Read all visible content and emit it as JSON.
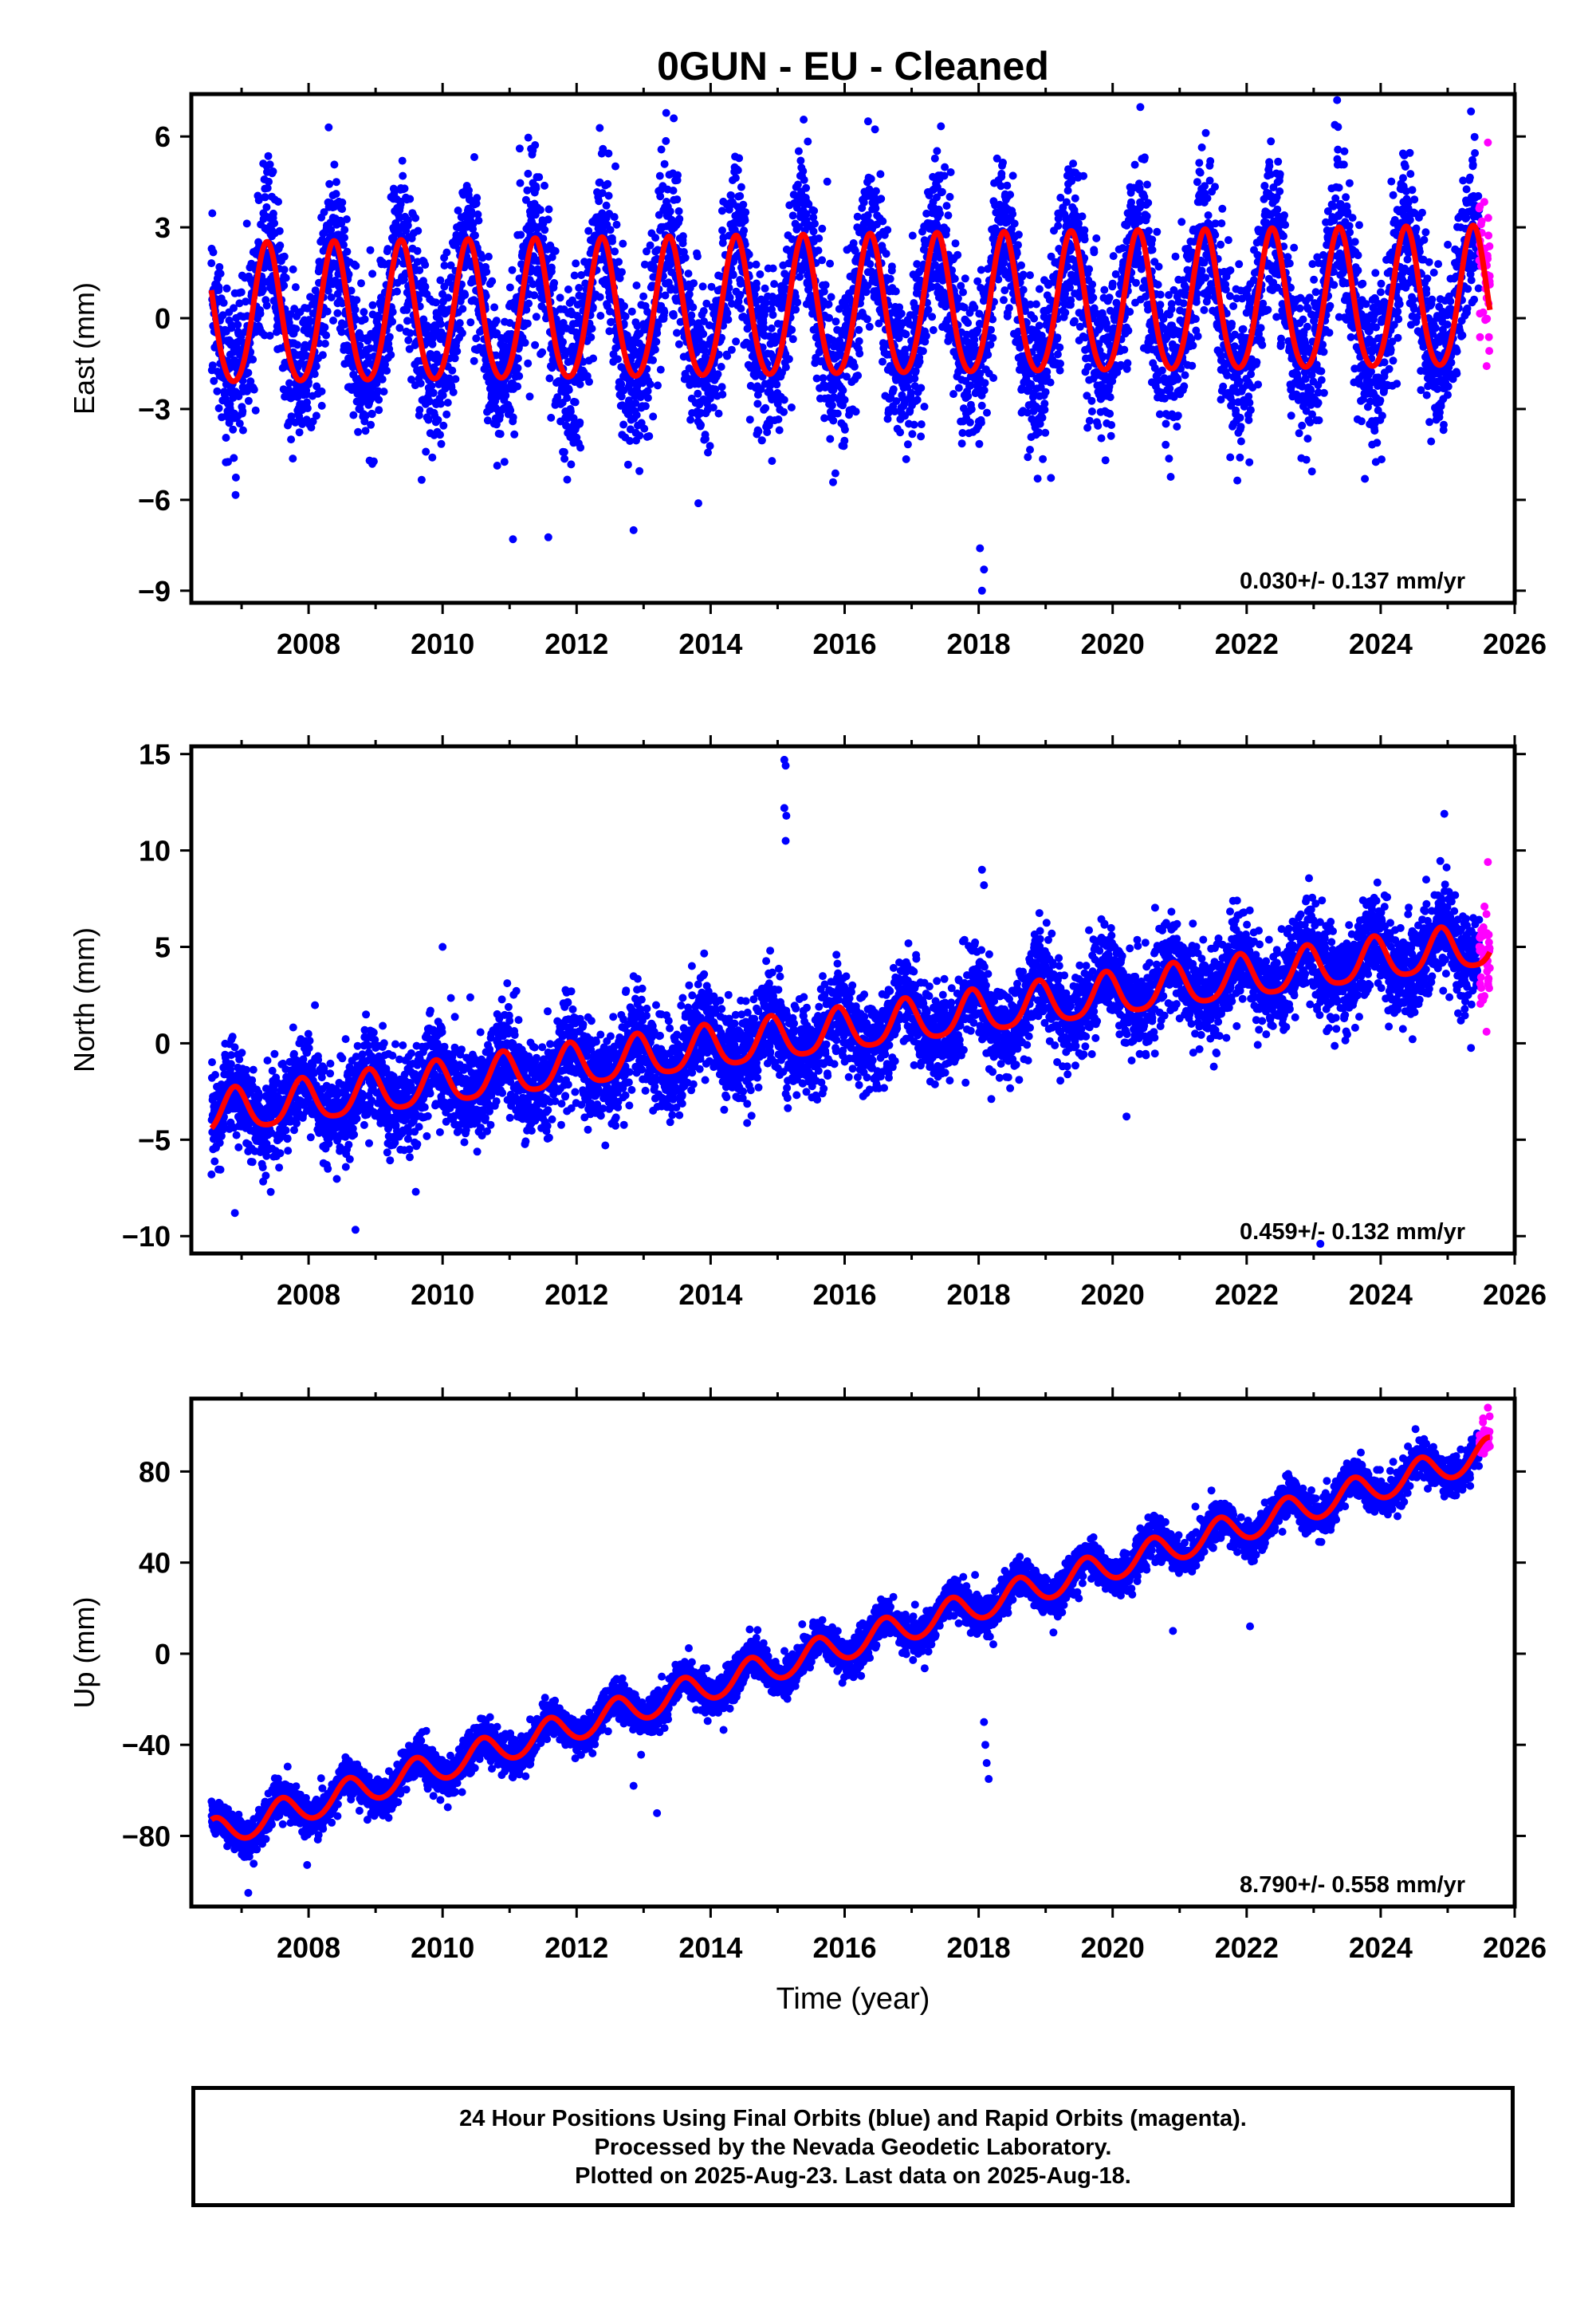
{
  "chart_data": [
    {
      "type": "scatter",
      "title": "0GUN  - EU - Cleaned",
      "ylabel": "East (mm)",
      "xlabel": "",
      "xlim": [
        2006.25,
        2026.0
      ],
      "ylim": [
        -9.4,
        7.4
      ],
      "xticks": [
        2008,
        2010,
        2012,
        2014,
        2016,
        2018,
        2020,
        2022,
        2024,
        2026
      ],
      "yticks": [
        -9,
        -6,
        -3,
        0,
        3,
        6
      ],
      "ytick_labels": [
        "−9",
        "−6",
        "−3",
        "0",
        "3",
        "6"
      ],
      "rate_annotation": "0.030+/- 0.137 mm/yr",
      "model": {
        "start": 2006.55,
        "end": 2025.63,
        "offset": -0.05,
        "trend_mm_per_yr": 0.03,
        "annual_amplitude": 2.3,
        "annual_peak_year_fraction": 0.38,
        "semiannual_amplitude": 0.25
      },
      "noise_sd": 1.3,
      "series": [
        {
          "name": "Final Orbits (blue)",
          "color": "#0000ff",
          "x_range": [
            2006.55,
            2025.47
          ],
          "approx_points": 6500
        },
        {
          "name": "Rapid Orbits (magenta)",
          "color": "#ff00ff",
          "x_range": [
            2025.47,
            2025.63
          ],
          "approx_points": 45
        },
        {
          "name": "Fit",
          "color": "#ff0000"
        }
      ],
      "outliers": [
        {
          "x": 2018.05,
          "y": -9.0
        },
        {
          "x": 2018.08,
          "y": -8.3
        },
        {
          "x": 2018.02,
          "y": -7.6
        },
        {
          "x": 2011.05,
          "y": -7.3
        },
        {
          "x": 2012.85,
          "y": -7.0
        },
        {
          "x": 2023.35,
          "y": 7.2
        },
        {
          "x": 2008.3,
          "y": 6.3
        },
        {
          "x": 2013.45,
          "y": 6.6
        },
        {
          "x": 2016.35,
          "y": 6.5
        },
        {
          "x": 2025.6,
          "y": 5.8
        }
      ]
    },
    {
      "type": "scatter",
      "title": "",
      "ylabel": "North (mm)",
      "xlabel": "",
      "xlim": [
        2006.25,
        2026.0
      ],
      "ylim": [
        -10.9,
        15.4
      ],
      "xticks": [
        2008,
        2010,
        2012,
        2014,
        2016,
        2018,
        2020,
        2022,
        2024,
        2026
      ],
      "yticks": [
        -10,
        -5,
        0,
        5,
        10,
        15
      ],
      "ytick_labels": [
        "−10",
        "−5",
        "0",
        "5",
        "10",
        "15"
      ],
      "rate_annotation": "0.459+/- 0.132 mm/yr",
      "model": {
        "start": 2006.55,
        "end": 2025.63,
        "offset": -3.7,
        "trend_mm_per_yr": 0.459,
        "annual_amplitude": 1.1,
        "annual_peak_year_fraction": 0.9,
        "semiannual_amplitude": 0.2
      },
      "noise_sd": 1.2,
      "series": [
        {
          "name": "Final Orbits (blue)",
          "color": "#0000ff",
          "x_range": [
            2006.55,
            2025.47
          ],
          "approx_points": 6500
        },
        {
          "name": "Rapid Orbits (magenta)",
          "color": "#ff00ff",
          "x_range": [
            2025.47,
            2025.63
          ],
          "approx_points": 45
        },
        {
          "name": "Fit",
          "color": "#ff0000"
        }
      ],
      "outliers": [
        {
          "x": 2015.1,
          "y": 14.7
        },
        {
          "x": 2015.12,
          "y": 14.4
        },
        {
          "x": 2015.1,
          "y": 12.2
        },
        {
          "x": 2015.13,
          "y": 11.8
        },
        {
          "x": 2015.12,
          "y": 10.5
        },
        {
          "x": 2018.05,
          "y": 9.0
        },
        {
          "x": 2018.08,
          "y": 8.2
        },
        {
          "x": 2010.0,
          "y": 5.0
        },
        {
          "x": 2006.9,
          "y": -8.8
        },
        {
          "x": 2009.6,
          "y": -7.7
        },
        {
          "x": 2023.1,
          "y": -10.4
        },
        {
          "x": 2025.6,
          "y": 9.4
        },
        {
          "x": 2025.58,
          "y": 0.6
        },
        {
          "x": 2024.95,
          "y": 11.9
        }
      ]
    },
    {
      "type": "scatter",
      "title": "",
      "ylabel": "Up (mm)",
      "xlabel": "Time (year)",
      "xlim": [
        2006.25,
        2026.0
      ],
      "ylim": [
        -111,
        112
      ],
      "xticks": [
        2008,
        2010,
        2012,
        2014,
        2016,
        2018,
        2020,
        2022,
        2024,
        2026
      ],
      "yticks": [
        -80,
        -40,
        0,
        40,
        80
      ],
      "ytick_labels": [
        "−80",
        "−40",
        "0",
        "40",
        "80"
      ],
      "rate_annotation": "8.790+/- 0.558 mm/yr",
      "model": {
        "start": 2006.55,
        "end": 2025.63,
        "offset": -79.5,
        "trend_mm_per_yr": 8.79,
        "annual_amplitude": 6.5,
        "annual_peak_year_fraction": 0.6,
        "semiannual_amplitude": 0.5
      },
      "noise_sd": 4.0,
      "series": [
        {
          "name": "Final Orbits (blue)",
          "color": "#0000ff",
          "x_range": [
            2006.55,
            2025.47
          ],
          "approx_points": 6500
        },
        {
          "name": "Rapid Orbits (magenta)",
          "color": "#ff00ff",
          "x_range": [
            2025.47,
            2025.63
          ],
          "approx_points": 45
        },
        {
          "name": "Fit",
          "color": "#ff0000"
        }
      ],
      "outliers": [
        {
          "x": 2018.15,
          "y": -55
        },
        {
          "x": 2018.12,
          "y": -48
        },
        {
          "x": 2018.1,
          "y": -40
        },
        {
          "x": 2018.08,
          "y": -30
        },
        {
          "x": 2013.2,
          "y": -70
        },
        {
          "x": 2012.85,
          "y": -58
        },
        {
          "x": 2007.1,
          "y": -105
        },
        {
          "x": 2022.05,
          "y": 12
        },
        {
          "x": 2020.9,
          "y": 10
        },
        {
          "x": 2025.6,
          "y": 108
        }
      ]
    }
  ],
  "footer": {
    "line1": "24 Hour Positions Using Final Orbits (blue) and Rapid Orbits (magenta).",
    "line2": "Processed by the Nevada Geodetic Laboratory.",
    "line3": "Plotted on 2025-Aug-23. Last data on 2025-Aug-18."
  }
}
